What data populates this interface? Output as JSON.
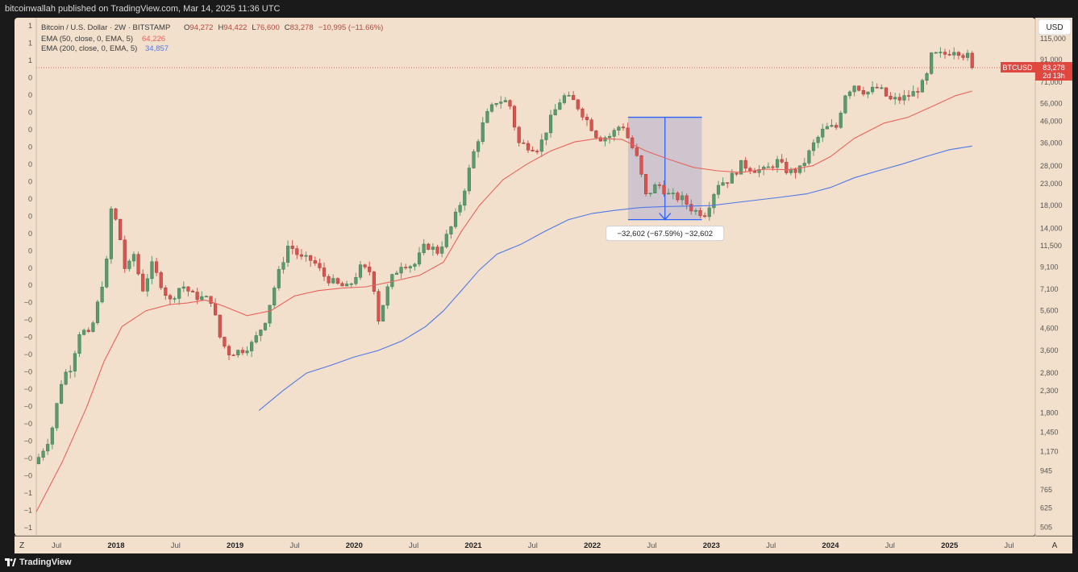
{
  "header": {
    "published": "bitcoinwallah published on TradingView.com, Mar 14, 2025 11:36 UTC"
  },
  "footer": {
    "brand": "TradingView"
  },
  "legend": {
    "symbol": "Bitcoin / U.S. Dollar · 2W · BITSTAMP",
    "ohlc": [
      {
        "k": "O",
        "v": "94,272"
      },
      {
        "k": "H",
        "v": "94,422"
      },
      {
        "k": "L",
        "v": "76,600"
      },
      {
        "k": "C",
        "v": "83,278"
      }
    ],
    "change": "−10,995 (−11.66%)",
    "ema50_label": "EMA (50, close, 0, EMA, 5)",
    "ema50_value": "64,226",
    "ema200_label": "EMA (200, close, 0, EMA, 5)",
    "ema200_value": "34,857"
  },
  "axis": {
    "currency": "USD",
    "corner_left": "Z",
    "corner_right": "A",
    "price_tag": "BTCUSD",
    "price_value": "83,278",
    "countdown": "2d 13h"
  },
  "measure": {
    "label": "−32,602 (−67.59%) −32,602"
  },
  "left_labels": [
    "1",
    "1",
    "1",
    "0",
    "0",
    "0",
    "0",
    "0",
    "0",
    "0",
    "0",
    "0",
    "0",
    "0",
    "0",
    "0",
    "−0",
    "−0",
    "−0",
    "−0",
    "−0",
    "−0",
    "−0",
    "−0",
    "−0",
    "−0",
    "−0",
    "−1",
    "−1",
    "−1"
  ],
  "colors": {
    "background": "#f2e0cc",
    "up": "#5a9a6e",
    "down": "#d9534f",
    "ema50": "#e8635d",
    "ema200": "#4f78e8",
    "measure": "#2962ff",
    "price_tag": "#e0473f"
  },
  "chart_data": {
    "type": "candlestick",
    "title": "Bitcoin / U.S. Dollar · 2W · BITSTAMP",
    "y_scale": "log",
    "ylim": [
      460,
      145000
    ],
    "y_ticks": [
      505,
      625,
      765,
      945,
      1170,
      1450,
      1800,
      2300,
      2800,
      3600,
      4600,
      5600,
      7100,
      9100,
      11500,
      14000,
      18000,
      23000,
      28000,
      36000,
      46000,
      56000,
      71000,
      91000,
      115000
    ],
    "y_tick_labels": [
      "505",
      "625",
      "765",
      "945",
      "1,170",
      "1,450",
      "1,800",
      "2,300",
      "2,800",
      "3,600",
      "4,600",
      "5,600",
      "7,100",
      "9,100",
      "11,500",
      "14,000",
      "18,000",
      "23,000",
      "28,000",
      "36,000",
      "46,000",
      "56,000",
      "71,000",
      "91,000",
      "115,000"
    ],
    "x_range": [
      2017.33,
      2025.72
    ],
    "x_ticks": [
      {
        "x": 2017.5,
        "label": "Jul",
        "bold": false
      },
      {
        "x": 2018.0,
        "label": "2018",
        "bold": true
      },
      {
        "x": 2018.5,
        "label": "Jul",
        "bold": false
      },
      {
        "x": 2019.0,
        "label": "2019",
        "bold": true
      },
      {
        "x": 2019.5,
        "label": "Jul",
        "bold": false
      },
      {
        "x": 2020.0,
        "label": "2020",
        "bold": true
      },
      {
        "x": 2020.5,
        "label": "Jul",
        "bold": false
      },
      {
        "x": 2021.0,
        "label": "2021",
        "bold": true
      },
      {
        "x": 2021.5,
        "label": "Jul",
        "bold": false
      },
      {
        "x": 2022.0,
        "label": "2022",
        "bold": true
      },
      {
        "x": 2022.5,
        "label": "Jul",
        "bold": false
      },
      {
        "x": 2023.0,
        "label": "2023",
        "bold": true
      },
      {
        "x": 2023.5,
        "label": "Jul",
        "bold": false
      },
      {
        "x": 2024.0,
        "label": "2024",
        "bold": true
      },
      {
        "x": 2024.5,
        "label": "Jul",
        "bold": false
      },
      {
        "x": 2025.0,
        "label": "2025",
        "bold": true
      },
      {
        "x": 2025.5,
        "label": "Jul",
        "bold": false
      }
    ],
    "close_anchors": [
      [
        2017.35,
        1100
      ],
      [
        2017.45,
        1400
      ],
      [
        2017.55,
        2700
      ],
      [
        2017.62,
        3000
      ],
      [
        2017.7,
        4600
      ],
      [
        2017.78,
        4200
      ],
      [
        2017.85,
        6200
      ],
      [
        2017.92,
        9500
      ],
      [
        2017.96,
        17500
      ],
      [
        2018.02,
        14000
      ],
      [
        2018.08,
        8500
      ],
      [
        2018.15,
        10500
      ],
      [
        2018.22,
        7000
      ],
      [
        2018.3,
        9300
      ],
      [
        2018.38,
        7500
      ],
      [
        2018.45,
        6200
      ],
      [
        2018.55,
        7500
      ],
      [
        2018.65,
        6600
      ],
      [
        2018.8,
        6300
      ],
      [
        2018.88,
        4000
      ],
      [
        2018.95,
        3500
      ],
      [
        2019.05,
        3600
      ],
      [
        2019.15,
        3900
      ],
      [
        2019.25,
        5000
      ],
      [
        2019.35,
        8000
      ],
      [
        2019.45,
        11800
      ],
      [
        2019.55,
        10000
      ],
      [
        2019.65,
        9800
      ],
      [
        2019.75,
        8200
      ],
      [
        2019.85,
        7500
      ],
      [
        2019.95,
        7200
      ],
      [
        2020.05,
        9000
      ],
      [
        2020.15,
        8600
      ],
      [
        2020.2,
        5000
      ],
      [
        2020.3,
        7800
      ],
      [
        2020.4,
        9500
      ],
      [
        2020.5,
        9200
      ],
      [
        2020.6,
        11700
      ],
      [
        2020.7,
        10800
      ],
      [
        2020.8,
        13500
      ],
      [
        2020.9,
        19000
      ],
      [
        2021.0,
        32000
      ],
      [
        2021.1,
        48000
      ],
      [
        2021.2,
        58000
      ],
      [
        2021.3,
        57000
      ],
      [
        2021.38,
        36000
      ],
      [
        2021.45,
        35000
      ],
      [
        2021.55,
        34000
      ],
      [
        2021.65,
        47000
      ],
      [
        2021.75,
        61000
      ],
      [
        2021.85,
        57000
      ],
      [
        2021.95,
        47000
      ],
      [
        2022.05,
        38000
      ],
      [
        2022.15,
        39000
      ],
      [
        2022.25,
        45000
      ],
      [
        2022.3,
        38000
      ],
      [
        2022.38,
        30000
      ],
      [
        2022.45,
        20000
      ],
      [
        2022.55,
        23000
      ],
      [
        2022.65,
        20000
      ],
      [
        2022.75,
        19500
      ],
      [
        2022.85,
        17000
      ],
      [
        2022.95,
        16500
      ],
      [
        2023.05,
        23000
      ],
      [
        2023.15,
        24000
      ],
      [
        2023.25,
        28500
      ],
      [
        2023.35,
        27000
      ],
      [
        2023.45,
        26500
      ],
      [
        2023.55,
        29500
      ],
      [
        2023.65,
        26000
      ],
      [
        2023.75,
        27000
      ],
      [
        2023.85,
        35000
      ],
      [
        2023.95,
        42500
      ],
      [
        2024.05,
        43000
      ],
      [
        2024.12,
        62000
      ],
      [
        2024.2,
        69000
      ],
      [
        2024.3,
        63000
      ],
      [
        2024.4,
        67000
      ],
      [
        2024.5,
        58000
      ],
      [
        2024.6,
        59000
      ],
      [
        2024.7,
        63000
      ],
      [
        2024.8,
        72000
      ],
      [
        2024.85,
        96000
      ],
      [
        2024.95,
        96000
      ],
      [
        2025.05,
        103000
      ],
      [
        2025.1,
        97000
      ],
      [
        2025.15,
        95000
      ],
      [
        2025.19,
        84000
      ]
    ],
    "candle_count": 207,
    "series": [
      {
        "name": "EMA (50, close, 0, EMA, 5)",
        "last": 64226,
        "color": "#e8635d",
        "points": [
          [
            2017.33,
            600
          ],
          [
            2017.55,
            1050
          ],
          [
            2017.75,
            1900
          ],
          [
            2017.9,
            3200
          ],
          [
            2018.05,
            4700
          ],
          [
            2018.25,
            5600
          ],
          [
            2018.45,
            6000
          ],
          [
            2018.6,
            6100
          ],
          [
            2018.75,
            6300
          ],
          [
            2018.9,
            5900
          ],
          [
            2019.1,
            5300
          ],
          [
            2019.3,
            5600
          ],
          [
            2019.5,
            6600
          ],
          [
            2019.7,
            7000
          ],
          [
            2019.9,
            7200
          ],
          [
            2020.1,
            7300
          ],
          [
            2020.3,
            7700
          ],
          [
            2020.55,
            8300
          ],
          [
            2020.75,
            9600
          ],
          [
            2020.9,
            13500
          ],
          [
            2021.05,
            18000
          ],
          [
            2021.25,
            24000
          ],
          [
            2021.45,
            28500
          ],
          [
            2021.65,
            33000
          ],
          [
            2021.85,
            36500
          ],
          [
            2022.05,
            38000
          ],
          [
            2022.25,
            37500
          ],
          [
            2022.45,
            33000
          ],
          [
            2022.65,
            30000
          ],
          [
            2022.85,
            27500
          ],
          [
            2023.05,
            26500
          ],
          [
            2023.25,
            26000
          ],
          [
            2023.45,
            27000
          ],
          [
            2023.65,
            26800
          ],
          [
            2023.85,
            28000
          ],
          [
            2024.0,
            31000
          ],
          [
            2024.2,
            38000
          ],
          [
            2024.45,
            45000
          ],
          [
            2024.65,
            48000
          ],
          [
            2024.85,
            54000
          ],
          [
            2025.05,
            61000
          ],
          [
            2025.19,
            64226
          ]
        ]
      },
      {
        "name": "EMA (200, close, 0, EMA, 5)",
        "last": 34857,
        "color": "#4f78e8",
        "points": [
          [
            2019.2,
            1850
          ],
          [
            2019.4,
            2300
          ],
          [
            2019.6,
            2800
          ],
          [
            2019.8,
            3050
          ],
          [
            2020.0,
            3350
          ],
          [
            2020.2,
            3600
          ],
          [
            2020.4,
            4000
          ],
          [
            2020.6,
            4700
          ],
          [
            2020.75,
            5600
          ],
          [
            2020.9,
            7000
          ],
          [
            2021.05,
            8800
          ],
          [
            2021.2,
            10500
          ],
          [
            2021.4,
            11700
          ],
          [
            2021.6,
            13500
          ],
          [
            2021.8,
            15400
          ],
          [
            2022.0,
            16500
          ],
          [
            2022.2,
            17100
          ],
          [
            2022.4,
            17600
          ],
          [
            2022.6,
            17800
          ],
          [
            2022.8,
            17900
          ],
          [
            2023.0,
            18000
          ],
          [
            2023.2,
            18600
          ],
          [
            2023.4,
            19200
          ],
          [
            2023.6,
            19800
          ],
          [
            2023.8,
            20500
          ],
          [
            2024.0,
            22000
          ],
          [
            2024.2,
            24500
          ],
          [
            2024.4,
            26500
          ],
          [
            2024.6,
            28500
          ],
          [
            2024.8,
            31000
          ],
          [
            2025.0,
            33500
          ],
          [
            2025.19,
            34857
          ]
        ]
      }
    ],
    "measure": {
      "x_from": 2022.3,
      "x_to": 2022.92,
      "y_from": 48000,
      "y_to": 15400,
      "label": "−32,602 (−67.59%) −32,602"
    },
    "last_price": 83278
  }
}
